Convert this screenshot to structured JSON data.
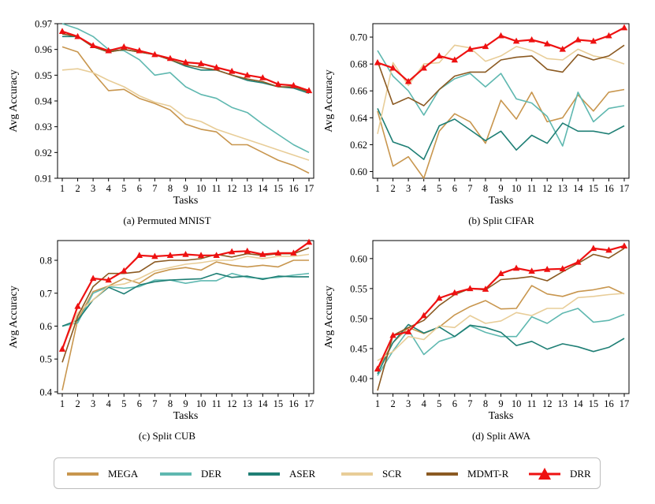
{
  "colors": {
    "MEGA": "#c8964e",
    "DER": "#5fb8b0",
    "ASER": "#1f7f75",
    "SCR": "#e8cd98",
    "MDMT-R": "#8b5a22",
    "DRR": "#ee1111"
  },
  "legend": [
    {
      "name": "MEGA",
      "color": "#c8964e",
      "marker": "none"
    },
    {
      "name": "DER",
      "color": "#5fb8b0",
      "marker": "none"
    },
    {
      "name": "ASER",
      "color": "#1f7f75",
      "marker": "none"
    },
    {
      "name": "SCR",
      "color": "#e8cd98",
      "marker": "none"
    },
    {
      "name": "MDMT-R",
      "color": "#8b5a22",
      "marker": "none"
    },
    {
      "name": "DRR",
      "color": "#ee1111",
      "marker": "triangle"
    }
  ],
  "chart_data": [
    {
      "type": "line",
      "caption": "(a) Permuted MNIST",
      "xlabel": "Tasks",
      "ylabel": "Avg Accuracy",
      "x": [
        1,
        2,
        3,
        4,
        5,
        6,
        7,
        8,
        9,
        10,
        11,
        12,
        13,
        14,
        15,
        16,
        17
      ],
      "ylim": [
        0.91,
        0.97
      ],
      "yticks": [
        "0.91",
        "0.92",
        "0.93",
        "0.94",
        "0.95",
        "0.96",
        "0.97"
      ],
      "series": [
        {
          "name": "MEGA",
          "values": [
            0.961,
            0.959,
            0.951,
            0.944,
            0.9445,
            0.941,
            0.939,
            0.9365,
            0.931,
            0.929,
            0.928,
            0.923,
            0.923,
            0.92,
            0.917,
            0.915,
            0.912
          ]
        },
        {
          "name": "DER",
          "values": [
            0.97,
            0.968,
            0.965,
            0.96,
            0.9595,
            0.956,
            0.95,
            0.951,
            0.9455,
            0.9425,
            0.941,
            0.9375,
            0.9355,
            0.931,
            0.927,
            0.923,
            0.92
          ]
        },
        {
          "name": "ASER",
          "values": [
            0.965,
            0.965,
            0.961,
            0.959,
            0.96,
            0.959,
            0.958,
            0.956,
            0.9535,
            0.952,
            0.952,
            0.95,
            0.948,
            0.947,
            0.9455,
            0.945,
            0.943
          ]
        },
        {
          "name": "SCR",
          "values": [
            0.952,
            0.9525,
            0.951,
            0.948,
            0.9455,
            0.942,
            0.9395,
            0.938,
            0.9335,
            0.932,
            0.929,
            0.927,
            0.925,
            0.923,
            0.921,
            0.919,
            0.917
          ]
        },
        {
          "name": "MDMT-R",
          "values": [
            0.966,
            0.965,
            0.961,
            0.959,
            0.96,
            0.959,
            0.958,
            0.956,
            0.954,
            0.953,
            0.952,
            0.95,
            0.9485,
            0.9475,
            0.9455,
            0.9455,
            0.9435
          ]
        },
        {
          "name": "DRR",
          "values": [
            0.967,
            0.965,
            0.9615,
            0.9595,
            0.961,
            0.9595,
            0.958,
            0.9565,
            0.955,
            0.9545,
            0.953,
            0.9515,
            0.95,
            0.949,
            0.9465,
            0.946,
            0.944
          ]
        }
      ]
    },
    {
      "type": "line",
      "caption": "(b) Split CIFAR",
      "xlabel": "Tasks",
      "ylabel": "Avg Accuracy",
      "x": [
        1,
        2,
        3,
        4,
        5,
        6,
        7,
        8,
        9,
        10,
        11,
        12,
        13,
        14,
        15,
        16,
        17
      ],
      "ylim": [
        0.595,
        0.71
      ],
      "yticks": [
        "0.60",
        "0.62",
        "0.64",
        "0.66",
        "0.68",
        "0.70"
      ],
      "series": [
        {
          "name": "MEGA",
          "values": [
            0.645,
            0.604,
            0.611,
            0.595,
            0.63,
            0.643,
            0.637,
            0.621,
            0.653,
            0.639,
            0.659,
            0.637,
            0.64,
            0.657,
            0.645,
            0.659,
            0.661
          ]
        },
        {
          "name": "DER",
          "values": [
            0.69,
            0.671,
            0.66,
            0.642,
            0.661,
            0.669,
            0.673,
            0.663,
            0.673,
            0.654,
            0.651,
            0.641,
            0.619,
            0.659,
            0.637,
            0.647,
            0.649
          ]
        },
        {
          "name": "ASER",
          "values": [
            0.647,
            0.622,
            0.618,
            0.609,
            0.634,
            0.639,
            0.631,
            0.623,
            0.63,
            0.616,
            0.627,
            0.621,
            0.636,
            0.63,
            0.63,
            0.628,
            0.634
          ]
        },
        {
          "name": "SCR",
          "values": [
            0.628,
            0.681,
            0.664,
            0.68,
            0.681,
            0.694,
            0.692,
            0.682,
            0.686,
            0.693,
            0.69,
            0.684,
            0.683,
            0.691,
            0.686,
            0.684,
            0.68
          ]
        },
        {
          "name": "MDMT-R",
          "values": [
            0.682,
            0.65,
            0.655,
            0.649,
            0.661,
            0.671,
            0.674,
            0.674,
            0.683,
            0.685,
            0.686,
            0.676,
            0.674,
            0.687,
            0.683,
            0.686,
            0.694
          ]
        },
        {
          "name": "DRR",
          "values": [
            0.681,
            0.677,
            0.667,
            0.677,
            0.686,
            0.683,
            0.691,
            0.693,
            0.701,
            0.697,
            0.698,
            0.695,
            0.691,
            0.698,
            0.697,
            0.701,
            0.707
          ]
        }
      ]
    },
    {
      "type": "line",
      "caption": "(c) Split CUB",
      "xlabel": "Tasks",
      "ylabel": "Avg Accuracy",
      "x": [
        1,
        2,
        3,
        4,
        5,
        6,
        7,
        8,
        9,
        10,
        11,
        12,
        13,
        14,
        15,
        16,
        17
      ],
      "ylim": [
        0.395,
        0.86
      ],
      "yticks": [
        "0.4",
        "0.5",
        "0.6",
        "0.7",
        "0.8"
      ],
      "series": [
        {
          "name": "MEGA",
          "values": [
            0.405,
            0.62,
            0.705,
            0.722,
            0.745,
            0.73,
            0.76,
            0.772,
            0.778,
            0.77,
            0.795,
            0.785,
            0.78,
            0.785,
            0.78,
            0.8,
            0.8
          ]
        },
        {
          "name": "DER",
          "values": [
            0.6,
            0.61,
            0.7,
            0.72,
            0.715,
            0.72,
            0.74,
            0.74,
            0.73,
            0.738,
            0.738,
            0.76,
            0.748,
            0.745,
            0.748,
            0.755,
            0.76
          ]
        },
        {
          "name": "ASER",
          "values": [
            0.6,
            0.618,
            0.68,
            0.718,
            0.698,
            0.725,
            0.735,
            0.74,
            0.742,
            0.744,
            0.76,
            0.748,
            0.752,
            0.742,
            0.752,
            0.75,
            0.75
          ]
        },
        {
          "name": "SCR",
          "values": [
            0.535,
            0.64,
            0.68,
            0.722,
            0.728,
            0.745,
            0.768,
            0.778,
            0.788,
            0.793,
            0.8,
            0.8,
            0.812,
            0.805,
            0.812,
            0.812,
            0.818
          ]
        },
        {
          "name": "MDMT-R",
          "values": [
            0.49,
            0.63,
            0.72,
            0.76,
            0.76,
            0.765,
            0.795,
            0.8,
            0.8,
            0.805,
            0.818,
            0.81,
            0.82,
            0.815,
            0.82,
            0.82,
            0.838
          ]
        },
        {
          "name": "DRR",
          "values": [
            0.53,
            0.66,
            0.745,
            0.74,
            0.768,
            0.815,
            0.812,
            0.815,
            0.818,
            0.815,
            0.815,
            0.826,
            0.828,
            0.818,
            0.822,
            0.822,
            0.855
          ]
        }
      ]
    },
    {
      "type": "line",
      "caption": "(d) Split AWA",
      "xlabel": "Tasks",
      "ylabel": "Avg Accuracy",
      "x": [
        1,
        2,
        3,
        4,
        5,
        6,
        7,
        8,
        9,
        10,
        11,
        12,
        13,
        14,
        15,
        16,
        17
      ],
      "ylim": [
        0.375,
        0.63
      ],
      "yticks": [
        "0.40",
        "0.45",
        "0.50",
        "0.55",
        "0.60"
      ],
      "series": [
        {
          "name": "MEGA",
          "values": [
            0.415,
            0.46,
            0.485,
            0.475,
            0.486,
            0.506,
            0.52,
            0.53,
            0.516,
            0.517,
            0.555,
            0.541,
            0.537,
            0.545,
            0.548,
            0.553,
            0.541
          ]
        },
        {
          "name": "DER",
          "values": [
            0.405,
            0.446,
            0.481,
            0.44,
            0.462,
            0.47,
            0.488,
            0.477,
            0.47,
            0.47,
            0.503,
            0.492,
            0.509,
            0.517,
            0.494,
            0.497,
            0.507
          ]
        },
        {
          "name": "ASER",
          "values": [
            0.408,
            0.46,
            0.49,
            0.476,
            0.486,
            0.47,
            0.489,
            0.485,
            0.477,
            0.455,
            0.462,
            0.449,
            0.458,
            0.453,
            0.445,
            0.452,
            0.467
          ]
        },
        {
          "name": "SCR",
          "values": [
            0.43,
            0.445,
            0.47,
            0.465,
            0.488,
            0.485,
            0.505,
            0.492,
            0.496,
            0.51,
            0.505,
            0.517,
            0.517,
            0.535,
            0.537,
            0.54,
            0.542
          ]
        },
        {
          "name": "MDMT-R",
          "values": [
            0.38,
            0.472,
            0.485,
            0.497,
            0.522,
            0.54,
            0.55,
            0.548,
            0.565,
            0.567,
            0.57,
            0.563,
            0.578,
            0.592,
            0.607,
            0.601,
            0.617
          ]
        },
        {
          "name": "DRR",
          "values": [
            0.416,
            0.472,
            0.478,
            0.505,
            0.534,
            0.543,
            0.55,
            0.549,
            0.575,
            0.584,
            0.579,
            0.582,
            0.583,
            0.594,
            0.617,
            0.614,
            0.621
          ]
        }
      ]
    }
  ]
}
